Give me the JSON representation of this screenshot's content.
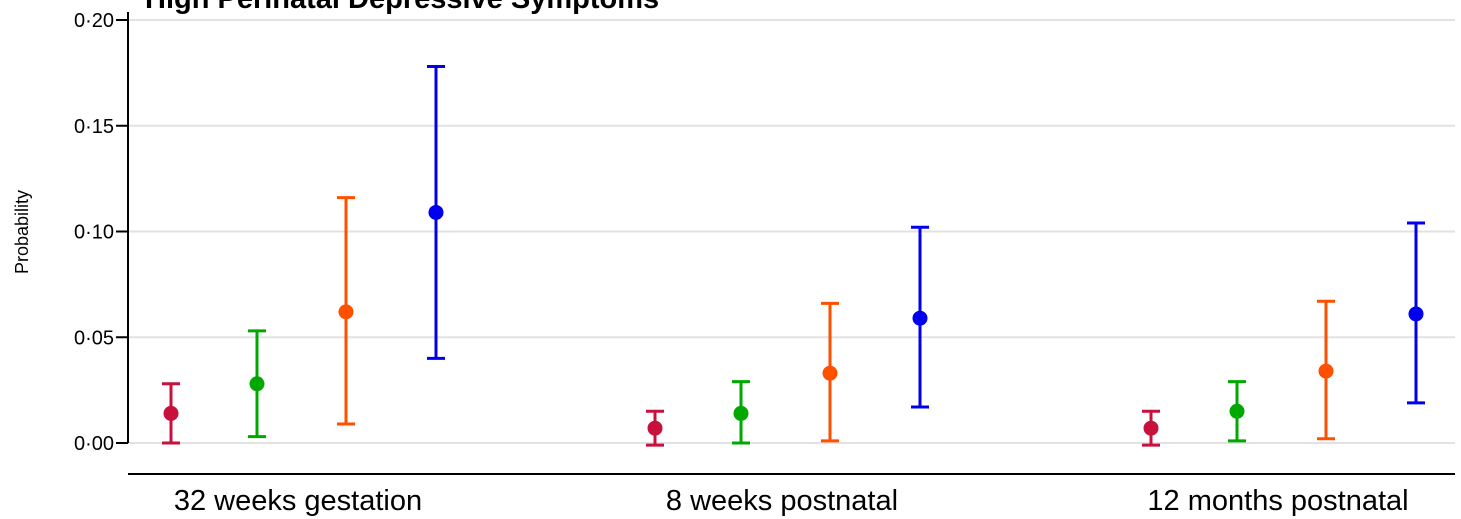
{
  "chart_data": {
    "type": "scatter",
    "title": "High Perinatal Depressive Symptoms",
    "xlabel": "",
    "ylabel": "Probability",
    "ylim": [
      0,
      0.2
    ],
    "yticks": [
      0,
      0.05,
      0.1,
      0.15,
      0.2
    ],
    "ytick_labels": [
      "0·00",
      "0·05",
      "0·10",
      "0·15",
      "0·20"
    ],
    "grid": true,
    "legend": "none",
    "categories": [
      "32 weeks gestation",
      "8 weeks postnatal",
      "12 months postnatal"
    ],
    "series": [
      {
        "color": "#c8103c",
        "values": [
          0.014,
          0.007,
          0.007
        ],
        "lower": [
          0.0,
          -0.001,
          -0.001
        ],
        "upper": [
          0.028,
          0.015,
          0.015
        ]
      },
      {
        "color": "#00a800",
        "values": [
          0.028,
          0.014,
          0.015
        ],
        "lower": [
          0.003,
          0.0,
          0.001
        ],
        "upper": [
          0.053,
          0.029,
          0.029
        ]
      },
      {
        "color": "#ff5000",
        "values": [
          0.062,
          0.033,
          0.034
        ],
        "lower": [
          0.009,
          0.001,
          0.002
        ],
        "upper": [
          0.116,
          0.066,
          0.067
        ]
      },
      {
        "color": "#0000ee",
        "values": [
          0.109,
          0.059,
          0.061
        ],
        "lower": [
          0.04,
          0.017,
          0.019
        ],
        "upper": [
          0.178,
          0.102,
          0.104
        ]
      }
    ]
  }
}
